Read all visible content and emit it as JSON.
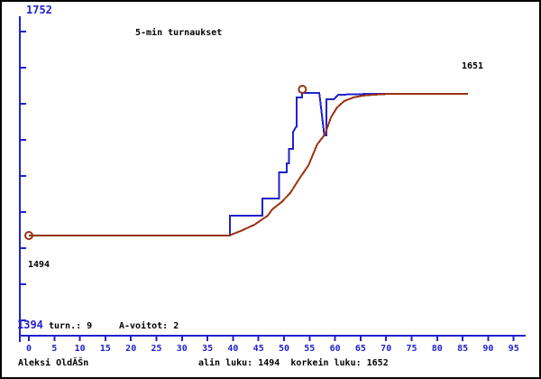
{
  "title": "5-min turnaukset",
  "colors": {
    "axis_blue": "#2121cd",
    "rating_line_blue": "#2121cd",
    "average_line_brown": "#993311",
    "text_black": "#000000"
  },
  "labels": {
    "y_max": "1752",
    "y_min": "1394",
    "start_value": "1494",
    "end_value": "1651",
    "stats_tournaments": "turn.: 9",
    "stats_a_wins": "A-voitot: 2",
    "player_name": "Aleksi OldĂŠn",
    "footer_stats": "alin luku: 1494  korkein luku: 1652"
  },
  "chart_data": {
    "type": "line",
    "title": "5-min turnaukset",
    "xlabel": "",
    "ylabel": "",
    "x_axis": {
      "min": 0,
      "max": 95,
      "tick_step": 5,
      "ticks": [
        0,
        5,
        10,
        15,
        20,
        25,
        30,
        35,
        40,
        45,
        50,
        55,
        60,
        65,
        70,
        75,
        80,
        85,
        90,
        95
      ]
    },
    "y_axis": {
      "top_label": 1752,
      "bottom_label": 1394,
      "tick_ratings": [
        1400,
        1440,
        1480,
        1520,
        1560,
        1600,
        1640,
        1680,
        1720
      ]
    },
    "legend": "none",
    "grid": false,
    "series": [
      {
        "name": "rating-after-game",
        "color": "#2121cd",
        "style": "step",
        "points": [
          [
            0,
            1494
          ],
          [
            39.4,
            1494
          ],
          [
            39.4,
            1516
          ],
          [
            45.8,
            1516
          ],
          [
            45.8,
            1535
          ],
          [
            49,
            1535
          ],
          [
            49,
            1564
          ],
          [
            50.5,
            1564
          ],
          [
            50.5,
            1574
          ],
          [
            51,
            1574
          ],
          [
            51,
            1590
          ],
          [
            51.8,
            1590
          ],
          [
            51.8,
            1609
          ],
          [
            52.2,
            1613
          ],
          [
            52.5,
            1615
          ],
          [
            52.5,
            1647
          ],
          [
            53.5,
            1647
          ],
          [
            53.5,
            1652
          ],
          [
            56.9,
            1652
          ],
          [
            57.9,
            1605
          ],
          [
            58.3,
            1605
          ],
          [
            58.3,
            1645
          ],
          [
            59.8,
            1645
          ],
          [
            60.6,
            1650
          ],
          [
            67,
            1651
          ],
          [
            86,
            1651
          ]
        ]
      },
      {
        "name": "smoothed-average",
        "color": "#993311",
        "style": "smooth",
        "points": [
          [
            0,
            1494
          ],
          [
            39.2,
            1494
          ],
          [
            41.5,
            1499
          ],
          [
            44.2,
            1506
          ],
          [
            46.8,
            1516
          ],
          [
            47.7,
            1523
          ],
          [
            49.5,
            1531
          ],
          [
            51.2,
            1541
          ],
          [
            53,
            1557
          ],
          [
            54.8,
            1572
          ],
          [
            56.5,
            1595
          ],
          [
            58,
            1606
          ],
          [
            59.2,
            1625
          ],
          [
            60.4,
            1636
          ],
          [
            61.8,
            1643
          ],
          [
            63.6,
            1647
          ],
          [
            65.4,
            1649
          ],
          [
            67.5,
            1650
          ],
          [
            70.7,
            1651
          ],
          [
            86,
            1651
          ]
        ]
      }
    ],
    "markers": [
      {
        "name": "lowest-point-marker",
        "x": 0,
        "rating": 1494,
        "dy": 0
      },
      {
        "name": "highest-point-marker",
        "x": 53.6,
        "rating": 1652,
        "dy": -4
      }
    ],
    "annotations": {
      "lowest_rating": 1494,
      "highest_rating": 1652,
      "final_rating": 1651,
      "tournaments": 9,
      "a_wins": 2
    }
  }
}
